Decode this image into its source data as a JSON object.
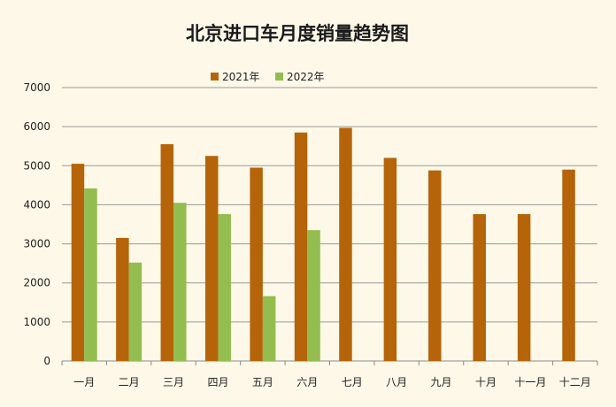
{
  "chart_data": {
    "type": "bar",
    "title": "北京进口车月度销量趋势图",
    "categories": [
      "一月",
      "二月",
      "三月",
      "四月",
      "五月",
      "六月",
      "七月",
      "八月",
      "九月",
      "十月",
      "十一月",
      "十二月"
    ],
    "series": [
      {
        "name": "2021年",
        "color": "#b5640a",
        "values": [
          5050,
          3150,
          5550,
          5250,
          4950,
          5850,
          5970,
          5200,
          4880,
          3760,
          3760,
          4900
        ]
      },
      {
        "name": "2022年",
        "color": "#93bd4f",
        "values": [
          4420,
          2520,
          4050,
          3760,
          1660,
          3350,
          null,
          null,
          null,
          null,
          null,
          null
        ]
      }
    ],
    "ylim": [
      0,
      7000
    ],
    "yticks": [
      0,
      1000,
      2000,
      3000,
      4000,
      5000,
      6000,
      7000
    ],
    "grid": true,
    "legend": "top",
    "xlabel": "",
    "ylabel": ""
  }
}
